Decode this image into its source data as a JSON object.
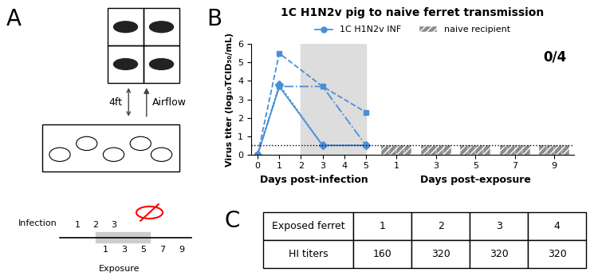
{
  "panel_labels": [
    "A",
    "B",
    "C"
  ],
  "diagram": {
    "distance": "4ft",
    "airflow": "Airflow",
    "infection": "Infection",
    "exposure": "Exposure",
    "pig_days": [
      "1",
      "2",
      "3"
    ],
    "ferret_days": [
      "1",
      "3",
      "5",
      "7",
      "9"
    ]
  },
  "chart_data": [
    {
      "type": "line",
      "title": "1C H1N2v pig to naive ferret transmission",
      "ylabel": "Virus titer (log₁₀TCID₅₀/mL)",
      "xlabel": "Days post-infection",
      "x": [
        0,
        1,
        3,
        5
      ],
      "xlim": [
        -0.3,
        5.5
      ],
      "xticks": [
        0,
        1,
        2,
        3,
        4,
        5
      ],
      "ylim": [
        0,
        6
      ],
      "yticks": [
        0,
        1,
        2,
        3,
        4,
        5,
        6
      ],
      "detection_limit": 0.5,
      "exposure_window": [
        2,
        5
      ],
      "legend": "upper center",
      "series": [
        {
          "name": "1C H1N2v INF",
          "color": "#4a8fd6",
          "marker": "circle",
          "line_style": "solid",
          "values": [
            0,
            3.7,
            0.5,
            0.5
          ]
        },
        {
          "color": "#4a8fd6",
          "marker": "square",
          "line_style": "dashed",
          "values": [
            0,
            5.5,
            3.7,
            2.3
          ]
        },
        {
          "color": "#4a8fd6",
          "marker": "triangle",
          "line_style": "dashdot",
          "values": [
            0,
            3.7,
            3.7,
            0.5
          ]
        },
        {
          "color": "#4a8fd6",
          "marker": "diamond",
          "line_style": "dotted",
          "values": [
            0,
            3.8,
            0.5,
            0.5
          ]
        }
      ]
    },
    {
      "type": "bar",
      "xlabel": "Days post-exposure",
      "annotation": "0/4",
      "x": [
        1,
        3,
        5,
        7,
        9
      ],
      "xlim": [
        0,
        10
      ],
      "xticks": [
        1,
        3,
        5,
        7,
        9
      ],
      "ylim": [
        0,
        6
      ],
      "detection_limit": 0.5,
      "tick_labels": "x",
      "legend": "upper center",
      "series": [
        {
          "name": "naive recipient",
          "color": "#8c8c8c",
          "values": [
            0.5,
            0.5,
            0.5,
            0.5,
            0.5
          ]
        },
        {
          "color": "#8c8c8c",
          "values": [
            0.5,
            0.5,
            0.5,
            0.5,
            0.5
          ]
        },
        {
          "color": "#8c8c8c",
          "values": [
            0.5,
            0.5,
            0.5,
            0.5,
            0.5
          ]
        },
        {
          "color": "#8c8c8c",
          "values": [
            0.5,
            0.5,
            0.5,
            0.5,
            0.5
          ]
        }
      ]
    }
  ],
  "table": {
    "rows": [
      [
        "Exposed ferret",
        1,
        2,
        3,
        4
      ],
      [
        "HI titers",
        160,
        320,
        320,
        320
      ]
    ]
  }
}
